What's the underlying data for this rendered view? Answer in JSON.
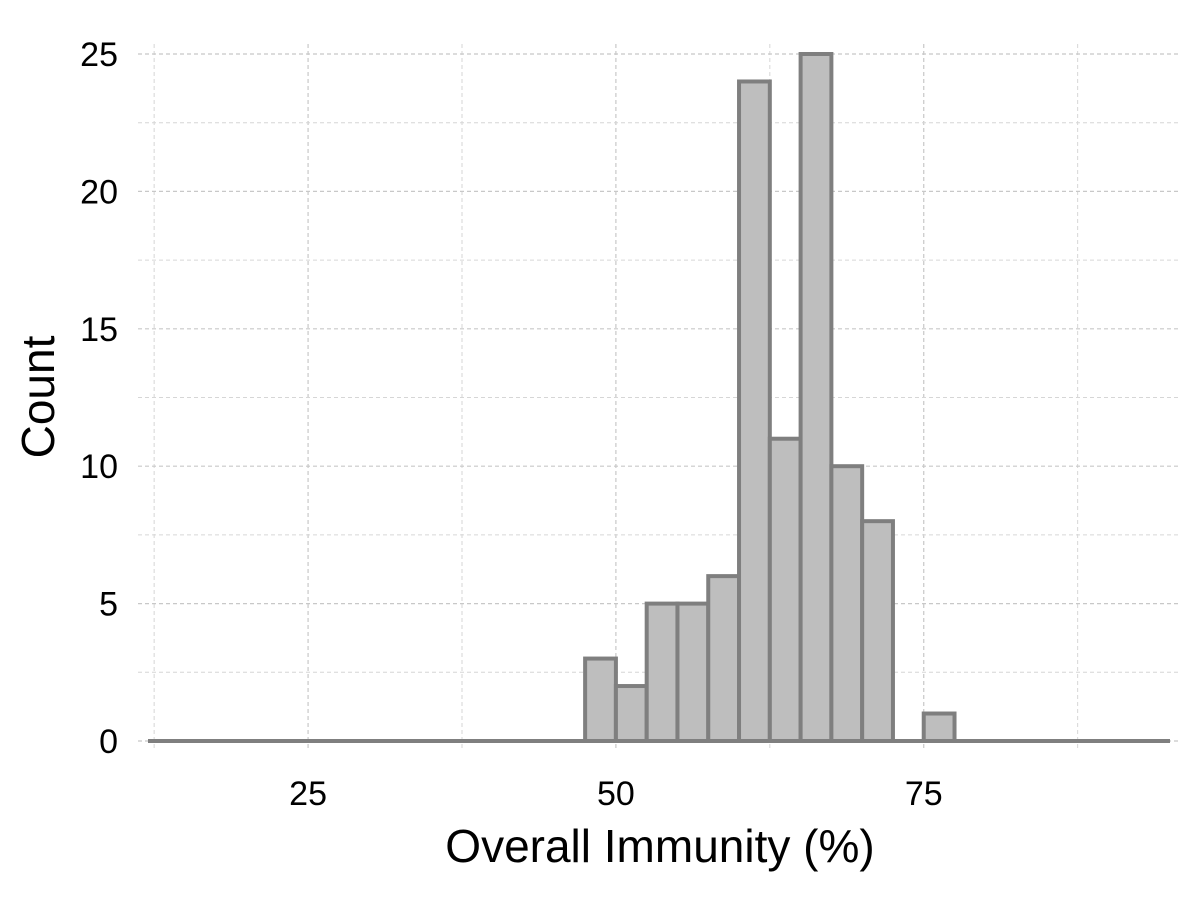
{
  "chart_data": {
    "type": "bar",
    "subtype": "histogram",
    "xlabel": "Overall Immunity (%)",
    "ylabel": "Count",
    "xlim": [
      12,
      95
    ],
    "ylim": [
      0,
      25
    ],
    "x_ticks": [
      25,
      50,
      75
    ],
    "y_ticks": [
      0,
      5,
      10,
      15,
      20,
      25
    ],
    "x_tick_labels": [
      "25",
      "50",
      "75"
    ],
    "y_tick_labels": [
      "0",
      "5",
      "10",
      "15",
      "20",
      "25"
    ],
    "grid": true,
    "legend": "none",
    "bin_width": 2.5,
    "bins": [
      {
        "start": 47.5,
        "end": 50.0,
        "count": 3
      },
      {
        "start": 50.0,
        "end": 52.5,
        "count": 2
      },
      {
        "start": 52.5,
        "end": 55.0,
        "count": 5
      },
      {
        "start": 55.0,
        "end": 57.5,
        "count": 5
      },
      {
        "start": 57.5,
        "end": 60.0,
        "count": 6
      },
      {
        "start": 60.0,
        "end": 62.5,
        "count": 24
      },
      {
        "start": 62.5,
        "end": 65.0,
        "count": 11
      },
      {
        "start": 65.0,
        "end": 67.5,
        "count": 25
      },
      {
        "start": 67.5,
        "end": 70.0,
        "count": 10
      },
      {
        "start": 70.0,
        "end": 72.5,
        "count": 8
      },
      {
        "start": 75.0,
        "end": 77.5,
        "count": 1
      }
    ],
    "colors": {
      "bar_fill": "#bebebe",
      "bar_stroke": "#7f7f7f",
      "baseline": "#7f7f7f"
    }
  }
}
